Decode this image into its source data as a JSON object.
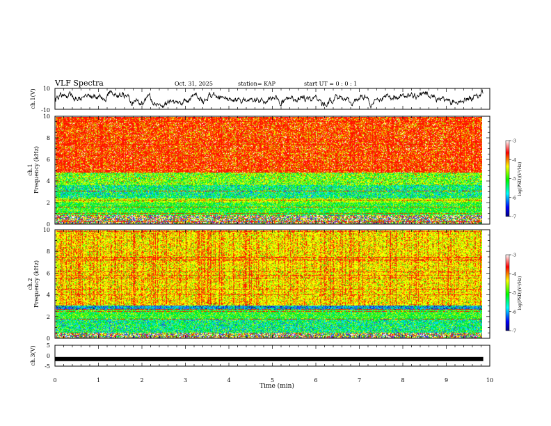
{
  "header": {
    "title": "VLF Spectra",
    "date": "Oct. 31, 2025",
    "station": "station= KAP",
    "start_ut": "start  UT =  0 : 0  : 1"
  },
  "chart_data": [
    {
      "type": "line",
      "name": "ch1-waveform",
      "ylabel": "ch.1(V)",
      "ylim": [
        -10,
        10
      ],
      "y_tick_labels": [
        "10",
        "-10"
      ],
      "x_range_min": [
        0,
        9.85
      ]
    },
    {
      "type": "heatmap",
      "name": "ch1-spectrogram",
      "ylabel": "ch.1 Frequency (kHz)",
      "ylim": [
        0,
        10
      ],
      "y_tick_labels": [
        "0",
        "2",
        "4",
        "6",
        "8",
        "10"
      ],
      "color_bands_khz": [
        {
          "from": 0,
          "to": 0.8,
          "level": "mixed"
        },
        {
          "from": 0.8,
          "to": 2.0,
          "level": "green"
        },
        {
          "from": 2.0,
          "to": 2.4,
          "level": "yellow-green"
        },
        {
          "from": 2.4,
          "to": 3.6,
          "level": "cyan-green"
        },
        {
          "from": 3.6,
          "to": 4.8,
          "level": "green-yellow"
        },
        {
          "from": 4.8,
          "to": 10,
          "level": "red"
        }
      ],
      "colorbar": {
        "label": "log(PSD)(V²/Hz)",
        "ticks": [
          "-3",
          "-4",
          "-5",
          "-6",
          "-7"
        ],
        "range": [
          -7,
          -3
        ]
      }
    },
    {
      "type": "heatmap",
      "name": "ch2-spectrogram",
      "ylabel": "ch.2 Frequency (kHz)",
      "ylim": [
        0,
        10
      ],
      "y_tick_labels": [
        "0",
        "2",
        "4",
        "6",
        "8",
        "10"
      ],
      "color_bands_khz": [
        {
          "from": 0,
          "to": 0.5,
          "level": "mixed"
        },
        {
          "from": 0.5,
          "to": 1.8,
          "level": "cyan-green"
        },
        {
          "from": 1.8,
          "to": 2.6,
          "level": "green"
        },
        {
          "from": 2.6,
          "to": 3.0,
          "level": "blue-cyan"
        },
        {
          "from": 3.0,
          "to": 10,
          "level": "yellow"
        }
      ],
      "colorbar": {
        "label": "log(PSD)(V²/Hz)",
        "ticks": [
          "-3",
          "-4",
          "-5",
          "-6",
          "-7"
        ],
        "range": [
          -7,
          -3
        ]
      }
    },
    {
      "type": "line",
      "name": "ch3-waveform",
      "ylabel": "ch.3(V)",
      "ylim": [
        -5,
        5
      ],
      "y_tick_labels": [
        "5",
        "0",
        "-5"
      ],
      "value_v": -1.6,
      "x_range_min": [
        0,
        9.85
      ]
    }
  ],
  "x_axis": {
    "label": "Time  (min)",
    "range": [
      0,
      10
    ],
    "ticks": [
      "0",
      "1",
      "2",
      "3",
      "4",
      "5",
      "6",
      "7",
      "8",
      "9",
      "10"
    ]
  }
}
